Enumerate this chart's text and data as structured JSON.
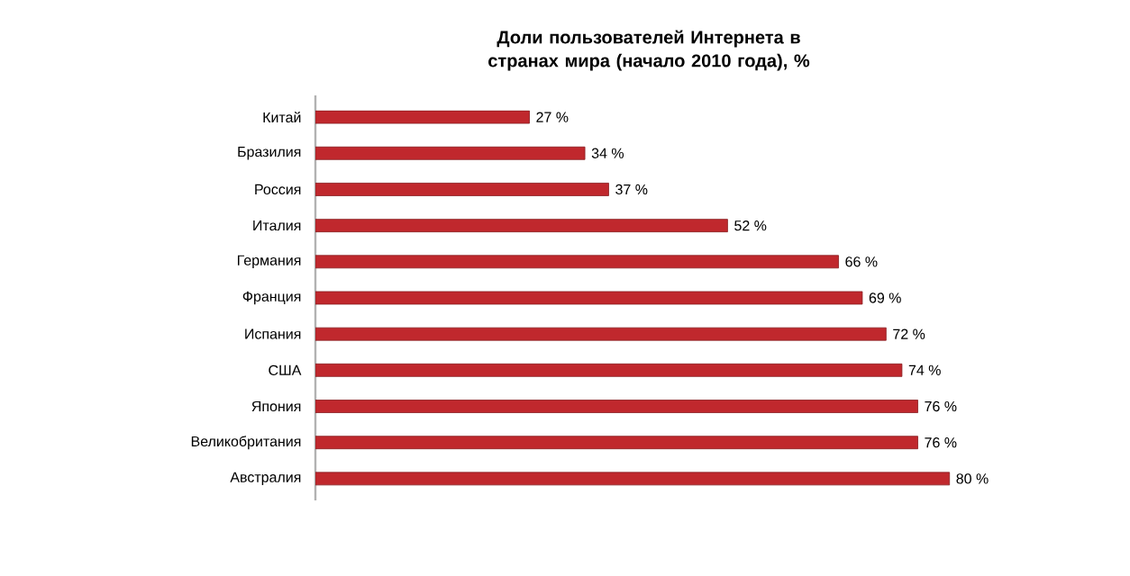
{
  "chart_data": {
    "type": "bar",
    "orientation": "horizontal",
    "title": "Доли пользователей Интернета в странах мира (начало 2010 года), %",
    "categories": [
      "Китай",
      "Бразилия",
      "Россия",
      "Италия",
      "Германия",
      "Франция",
      "Испания",
      "США",
      "Япония",
      "Великобритания",
      "Австралия"
    ],
    "values": [
      27,
      34,
      37,
      52,
      66,
      69,
      72,
      74,
      76,
      76,
      80
    ],
    "value_labels": [
      "27 %",
      "34 %",
      "37 %",
      "52 %",
      "66 %",
      "69 %",
      "72 %",
      "74 %",
      "76 %",
      "76 %",
      "80 %"
    ],
    "color": "#c0282d"
  }
}
